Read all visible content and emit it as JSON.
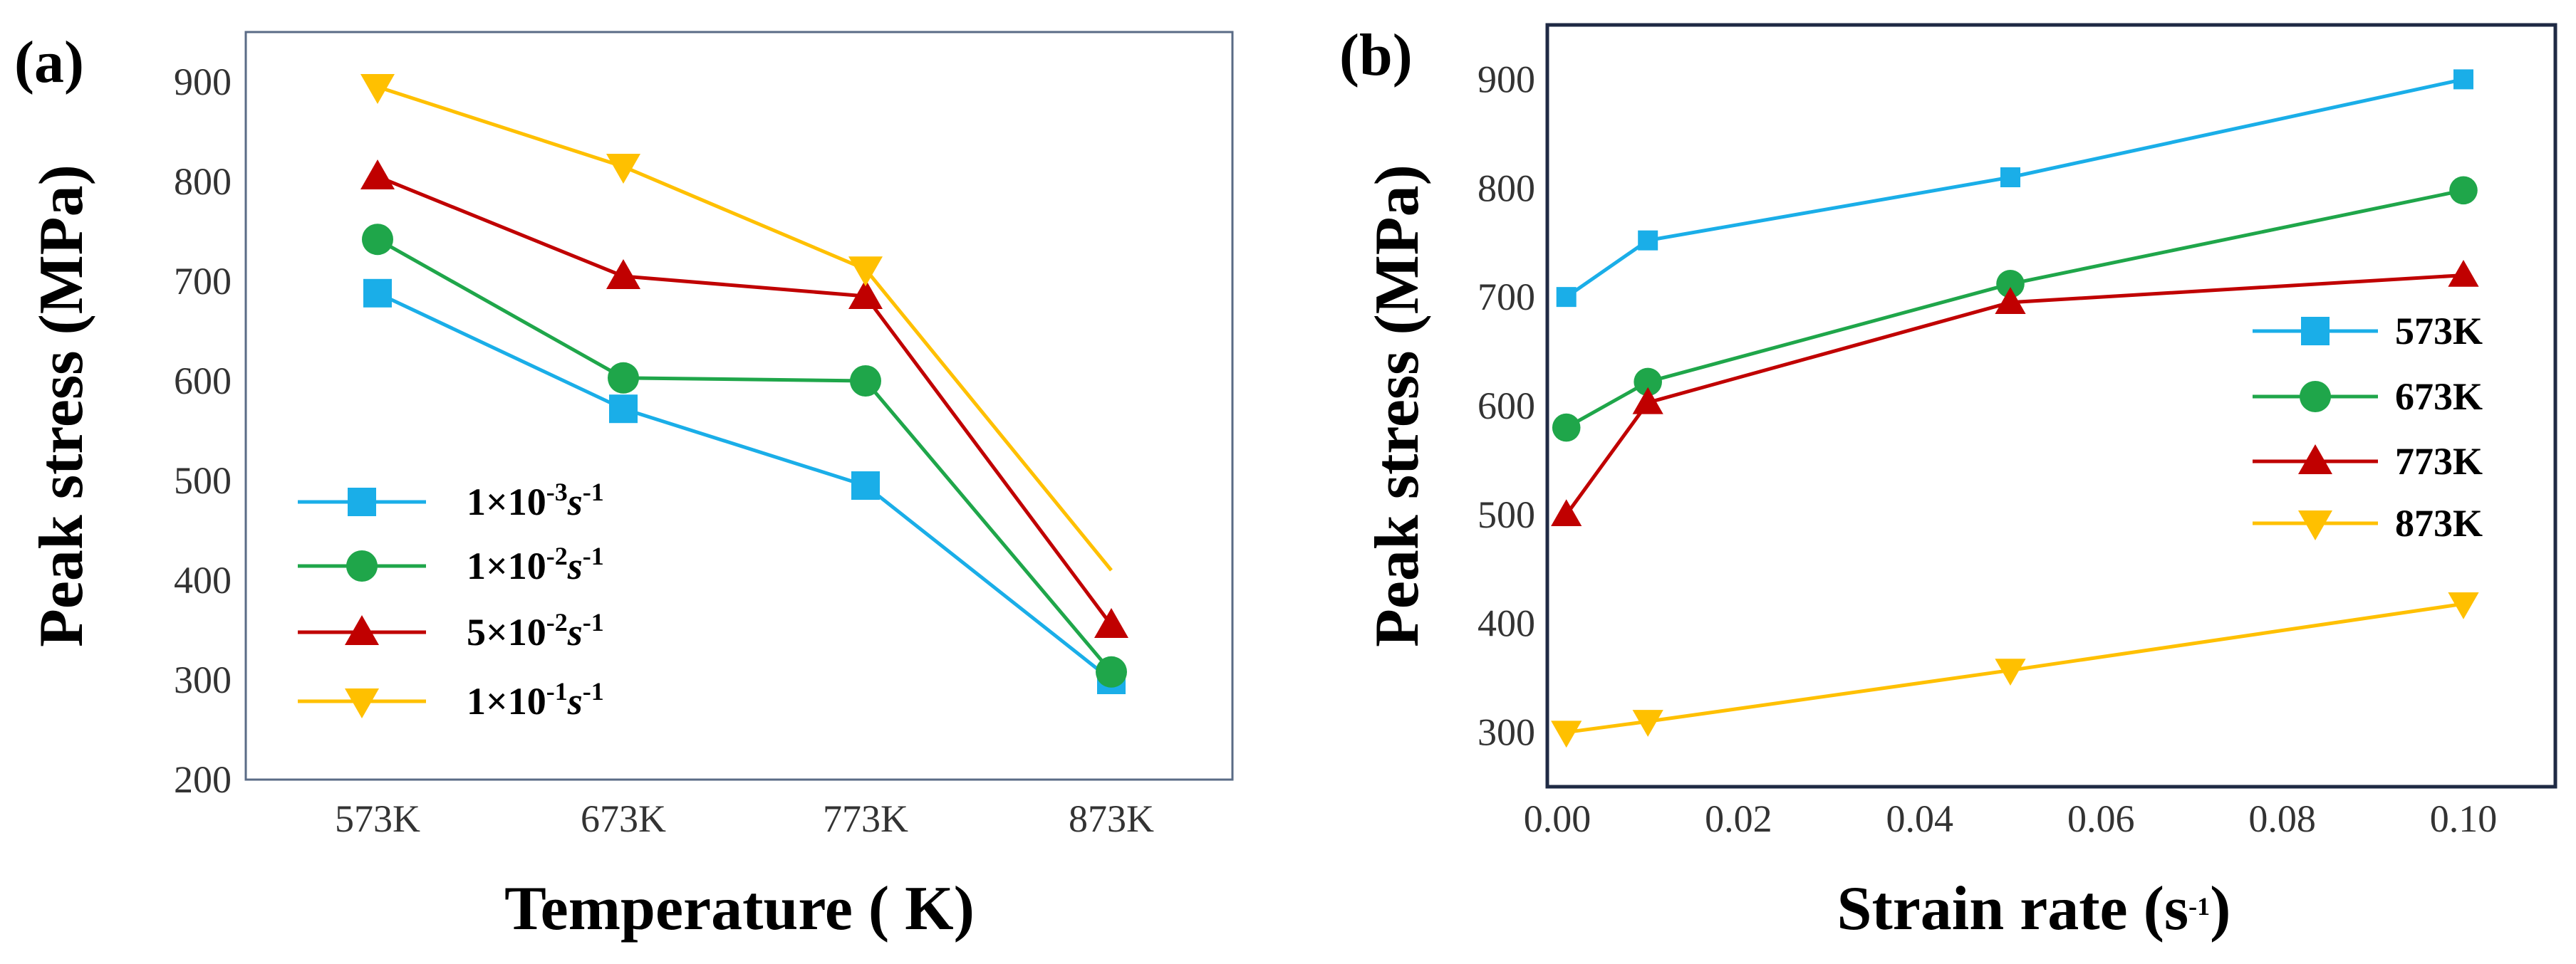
{
  "chart_data": [
    {
      "type": "line",
      "panel_label": "(a)",
      "xlabel": "Temperature ( K)",
      "ylabel": "Peak stress (MPa)",
      "categories": [
        "573K",
        "673K",
        "773K",
        "873K"
      ],
      "ylim": [
        200,
        950
      ],
      "yticks": [
        200,
        300,
        400,
        500,
        600,
        700,
        800,
        900
      ],
      "legend_position": "lower-left",
      "series": [
        {
          "name": "1×10-3s-1",
          "legend": {
            "coef": "1×10",
            "exp": "-3",
            "unit": "s",
            "unit_exp": "-1"
          },
          "marker": "square",
          "color": "#1aaee8",
          "values": [
            688,
            572,
            495,
            300
          ]
        },
        {
          "name": "1×10-2s-1",
          "legend": {
            "coef": "1×10",
            "exp": "-2",
            "unit": "s",
            "unit_exp": "-1"
          },
          "marker": "circle",
          "color": "#1fa64a",
          "values": [
            742,
            603,
            600,
            308
          ]
        },
        {
          "name": "5×10-2s-1",
          "legend": {
            "coef": "5×10",
            "exp": "-2",
            "unit": "s",
            "unit_exp": "-1"
          },
          "marker": "triangle-up",
          "color": "#c00000",
          "values": [
            805,
            705,
            685,
            355
          ]
        },
        {
          "name": "1×10-1s-1",
          "legend": {
            "coef": "1×10",
            "exp": "-1",
            "unit": "s",
            "unit_exp": "-1"
          },
          "marker": "triangle-down",
          "color": "#ffc000",
          "values": [
            895,
            815,
            712,
            410
          ]
        }
      ]
    },
    {
      "type": "line",
      "panel_label": "(b)",
      "xlabel": "Strain rate (s-1)",
      "xlabel_parts": {
        "main": "Strain rate (s",
        "sup": "-1",
        "end": ")"
      },
      "ylabel": "Peak stress (MPa)",
      "xlim": [
        0,
        0.105
      ],
      "ylim": [
        250,
        950
      ],
      "xticks": [
        "0.00",
        "0.02",
        "0.04",
        "0.06",
        "0.08",
        "0.10"
      ],
      "xtick_values": [
        0,
        0.02,
        0.04,
        0.06,
        0.08,
        0.1
      ],
      "yticks": [
        300,
        400,
        500,
        600,
        700,
        800,
        900
      ],
      "legend_position": "right",
      "series": [
        {
          "name": "573K",
          "marker": "square",
          "color": "#1aaee8",
          "x": [
            0.001,
            0.01,
            0.05,
            0.1
          ],
          "values": [
            700,
            752,
            810,
            900
          ]
        },
        {
          "name": "673K",
          "marker": "circle",
          "color": "#1fa64a",
          "x": [
            0.001,
            0.01,
            0.05,
            0.1
          ],
          "values": [
            580,
            622,
            712,
            798
          ]
        },
        {
          "name": "773K",
          "marker": "triangle-up",
          "color": "#c00000",
          "x": [
            0.001,
            0.01,
            0.05,
            0.1
          ],
          "values": [
            500,
            603,
            695,
            720
          ]
        },
        {
          "name": "873K",
          "marker": "triangle-down",
          "color": "#ffc000",
          "x": [
            0.001,
            0.01,
            0.05,
            0.1
          ],
          "values": [
            300,
            310,
            357,
            418
          ]
        }
      ]
    }
  ]
}
